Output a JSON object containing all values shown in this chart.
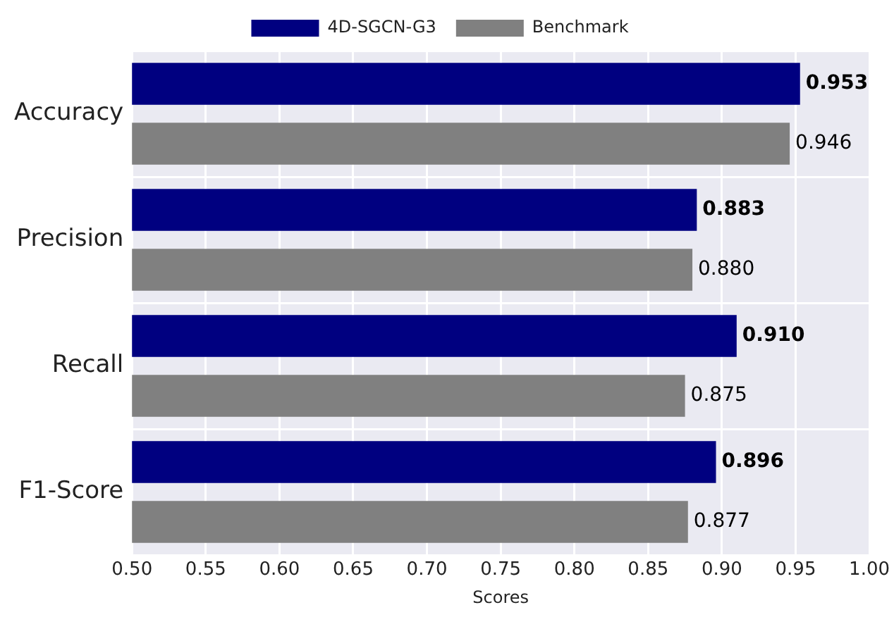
{
  "chart_data": {
    "type": "bar",
    "orientation": "horizontal",
    "xlabel": "Scores",
    "categories": [
      "Accuracy",
      "Precision",
      "Recall",
      "F1-Score"
    ],
    "series": [
      {
        "name": "4D-SGCN-G3",
        "color": "#000080",
        "values": [
          0.953,
          0.883,
          0.91,
          0.896
        ],
        "value_labels": [
          "0.953",
          "0.883",
          "0.910",
          "0.896"
        ]
      },
      {
        "name": "Benchmark",
        "color": "#808080",
        "values": [
          0.946,
          0.88,
          0.875,
          0.877
        ],
        "value_labels": [
          "0.946",
          "0.880",
          "0.875",
          "0.877"
        ]
      }
    ],
    "xlim": [
      0.5,
      1.0
    ],
    "xticks": [
      {
        "value": 0.5,
        "label": "0.50"
      },
      {
        "value": 0.55,
        "label": "0.55"
      },
      {
        "value": 0.6,
        "label": "0.60"
      },
      {
        "value": 0.65,
        "label": "0.65"
      },
      {
        "value": 0.7,
        "label": "0.70"
      },
      {
        "value": 0.75,
        "label": "0.75"
      },
      {
        "value": 0.8,
        "label": "0.80"
      },
      {
        "value": 0.85,
        "label": "0.85"
      },
      {
        "value": 0.9,
        "label": "0.90"
      },
      {
        "value": 0.95,
        "label": "0.95"
      },
      {
        "value": 1.0,
        "label": "1.00"
      }
    ],
    "grid": true,
    "legend": "top"
  }
}
